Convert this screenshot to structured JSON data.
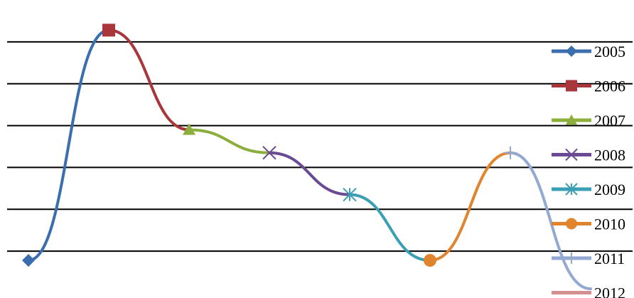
{
  "chart_data": {
    "type": "line",
    "title": "",
    "xlabel": "",
    "ylabel": "",
    "ylim": [
      0,
      7
    ],
    "gridlines": [
      1,
      2,
      3,
      4,
      5,
      6
    ],
    "grid": true,
    "legend_position": "right",
    "series": [
      {
        "name": "2005",
        "color": "#3B6EAE",
        "marker": "diamond",
        "x": [
          0,
          1
        ],
        "y": [
          0.78,
          6.28
        ]
      },
      {
        "name": "2006",
        "color": "#A9363A",
        "marker": "square",
        "x": [
          1,
          2
        ],
        "y": [
          6.28,
          3.9
        ]
      },
      {
        "name": "2007",
        "color": "#8BAE3C",
        "marker": "triangle",
        "x": [
          2,
          3
        ],
        "y": [
          3.9,
          3.35
        ]
      },
      {
        "name": "2008",
        "color": "#6A4A92",
        "marker": "x",
        "x": [
          3,
          4
        ],
        "y": [
          3.35,
          2.35
        ]
      },
      {
        "name": "2009",
        "color": "#3A9EB5",
        "marker": "star",
        "x": [
          4,
          5
        ],
        "y": [
          2.35,
          0.78
        ]
      },
      {
        "name": "2010",
        "color": "#E0852D",
        "marker": "circle",
        "x": [
          5,
          6
        ],
        "y": [
          0.78,
          3.35
        ]
      },
      {
        "name": "2011",
        "color": "#93A9D2",
        "marker": "plus",
        "x": [
          6,
          7
        ],
        "y": [
          3.35,
          0.1
        ]
      },
      {
        "name": "2012",
        "color": "#D48F8F",
        "marker": "dash",
        "x": [
          7
        ],
        "y": [
          0.1
        ]
      }
    ]
  }
}
